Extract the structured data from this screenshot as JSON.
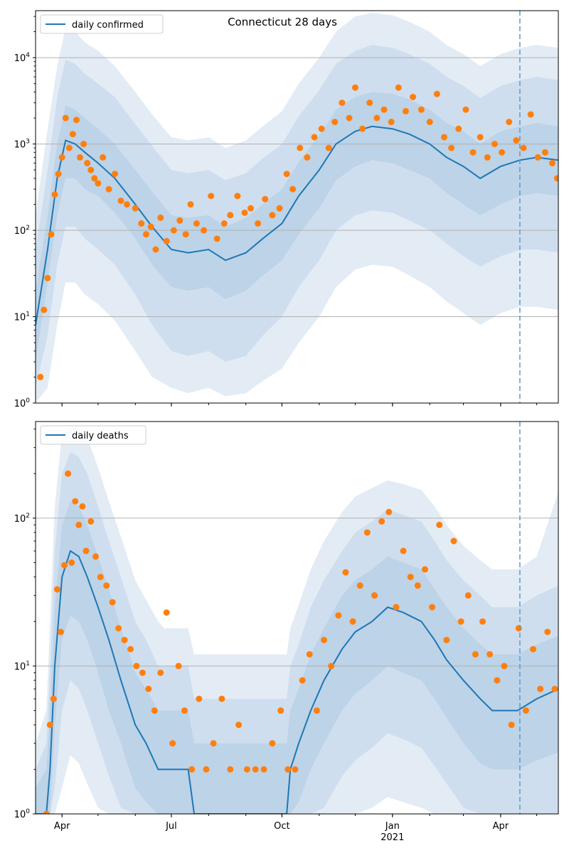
{
  "title": "Connecticut 28 days",
  "colors": {
    "line": "#1f77b4",
    "points": "#ff7f0e",
    "band_outer": "#e3ecf5",
    "band_mid": "#cfdeee",
    "band_inner": "#bcd3e8",
    "grid": "#b0b0b0"
  },
  "chart_data": [
    {
      "type": "line",
      "legend": "daily confirmed",
      "legend_position": "top-left",
      "yscale": "log",
      "ylim": [
        1,
        35000
      ],
      "y_ticks": [
        {
          "value": 1,
          "label": "10^0"
        },
        {
          "value": 10,
          "label": "10^1"
        },
        {
          "value": 100,
          "label": "10^2"
        },
        {
          "value": 1000,
          "label": "10^3"
        },
        {
          "value": 10000,
          "label": "10^4"
        }
      ],
      "x_ticks": [
        {
          "date": "2020-04-01",
          "label": "Apr"
        },
        {
          "date": "2020-07-01",
          "label": "Jul"
        },
        {
          "date": "2020-10-01",
          "label": "Oct"
        },
        {
          "date": "2021-01-01",
          "label": "Jan",
          "sublabel": "2021"
        },
        {
          "date": "2021-04-01",
          "label": "Apr"
        }
      ],
      "xlim": [
        "2020-03-10",
        "2021-05-19"
      ],
      "grid": "horizontal",
      "vline_date": "2021-04-17",
      "median": {
        "x": [
          "2020-03-10",
          "2020-03-20",
          "2020-03-28",
          "2020-04-04",
          "2020-04-12",
          "2020-04-20",
          "2020-05-01",
          "2020-05-15",
          "2020-06-01",
          "2020-06-15",
          "2020-07-01",
          "2020-07-15",
          "2020-08-01",
          "2020-08-15",
          "2020-09-01",
          "2020-09-15",
          "2020-10-01",
          "2020-10-15",
          "2020-11-01",
          "2020-11-15",
          "2020-12-01",
          "2020-12-15",
          "2021-01-01",
          "2021-01-15",
          "2021-02-01",
          "2021-02-15",
          "2021-03-01",
          "2021-03-15",
          "2021-04-01",
          "2021-04-17",
          "2021-05-01",
          "2021-05-19"
        ],
        "y": [
          8,
          60,
          400,
          1100,
          1000,
          800,
          600,
          400,
          200,
          110,
          60,
          55,
          60,
          45,
          55,
          80,
          120,
          250,
          500,
          1000,
          1400,
          1600,
          1500,
          1300,
          1000,
          700,
          550,
          400,
          550,
          650,
          700,
          650
        ]
      },
      "band_inner": {
        "lower": [
          3,
          25,
          150,
          400,
          400,
          300,
          250,
          160,
          80,
          40,
          22,
          20,
          22,
          16,
          20,
          30,
          45,
          90,
          180,
          380,
          550,
          650,
          600,
          500,
          400,
          270,
          200,
          150,
          200,
          250,
          270,
          250
        ],
        "upper": [
          20,
          150,
          1000,
          2800,
          2500,
          2000,
          1500,
          1000,
          500,
          280,
          150,
          140,
          150,
          110,
          140,
          200,
          300,
          620,
          1250,
          2500,
          3500,
          4000,
          3800,
          3300,
          2500,
          1750,
          1400,
          1000,
          1400,
          1600,
          1750,
          1600
        ]
      },
      "band_outer": {
        "lower": [
          1.5,
          6,
          40,
          110,
          110,
          80,
          60,
          40,
          18,
          8,
          4,
          3.5,
          4,
          3,
          3.5,
          6,
          10,
          22,
          45,
          100,
          150,
          170,
          160,
          130,
          100,
          70,
          50,
          38,
          50,
          60,
          60,
          55
        ],
        "upper": [
          60,
          500,
          3500,
          9500,
          8500,
          6500,
          5000,
          3500,
          1700,
          950,
          500,
          460,
          500,
          380,
          460,
          680,
          1000,
          2100,
          4200,
          8500,
          12000,
          14000,
          13000,
          11000,
          8500,
          6000,
          4700,
          3400,
          4700,
          5500,
          6000,
          5500
        ]
      },
      "band_extreme": {
        "lower": [
          1,
          1.5,
          8,
          25,
          25,
          18,
          14,
          9,
          4,
          2,
          1.5,
          1.3,
          1.5,
          1.2,
          1.3,
          1.8,
          2.5,
          5,
          10,
          22,
          35,
          40,
          38,
          30,
          22,
          15,
          11,
          8,
          11,
          13,
          13,
          12
        ],
        "upper": [
          150,
          1500,
          8000,
          22000,
          20000,
          15000,
          12000,
          8000,
          4000,
          2200,
          1200,
          1100,
          1200,
          900,
          1100,
          1600,
          2400,
          5000,
          10000,
          20000,
          30000,
          33000,
          31000,
          26000,
          20000,
          14000,
          11000,
          8000,
          11000,
          13000,
          14000,
          13000
        ]
      },
      "observed": {
        "x": [
          "2020-03-14",
          "2020-03-17",
          "2020-03-20",
          "2020-03-23",
          "2020-03-26",
          "2020-03-29",
          "2020-04-01",
          "2020-04-04",
          "2020-04-07",
          "2020-04-10",
          "2020-04-13",
          "2020-04-16",
          "2020-04-19",
          "2020-04-22",
          "2020-04-25",
          "2020-04-28",
          "2020-05-01",
          "2020-05-05",
          "2020-05-10",
          "2020-05-15",
          "2020-05-20",
          "2020-05-25",
          "2020-06-01",
          "2020-06-06",
          "2020-06-10",
          "2020-06-14",
          "2020-06-18",
          "2020-06-22",
          "2020-06-27",
          "2020-07-03",
          "2020-07-08",
          "2020-07-13",
          "2020-07-17",
          "2020-07-22",
          "2020-07-28",
          "2020-08-03",
          "2020-08-08",
          "2020-08-14",
          "2020-08-19",
          "2020-08-25",
          "2020-08-31",
          "2020-09-05",
          "2020-09-11",
          "2020-09-17",
          "2020-09-23",
          "2020-09-29",
          "2020-10-05",
          "2020-10-10",
          "2020-10-16",
          "2020-10-22",
          "2020-10-28",
          "2020-11-03",
          "2020-11-09",
          "2020-11-14",
          "2020-11-20",
          "2020-11-26",
          "2020-12-01",
          "2020-12-07",
          "2020-12-13",
          "2020-12-19",
          "2020-12-25",
          "2020-12-31",
          "2021-01-06",
          "2021-01-12",
          "2021-01-18",
          "2021-01-25",
          "2021-02-01",
          "2021-02-07",
          "2021-02-13",
          "2021-02-19",
          "2021-02-25",
          "2021-03-03",
          "2021-03-09",
          "2021-03-15",
          "2021-03-21",
          "2021-03-27",
          "2021-04-02",
          "2021-04-08",
          "2021-04-14",
          "2021-04-20",
          "2021-04-26",
          "2021-05-02",
          "2021-05-08",
          "2021-05-14",
          "2021-05-18"
        ],
        "y": [
          2,
          12,
          28,
          90,
          260,
          450,
          700,
          2000,
          900,
          1300,
          1900,
          700,
          1000,
          600,
          500,
          400,
          350,
          700,
          300,
          450,
          220,
          200,
          180,
          120,
          90,
          110,
          60,
          140,
          75,
          100,
          130,
          90,
          200,
          120,
          100,
          250,
          80,
          120,
          150,
          250,
          160,
          180,
          120,
          230,
          150,
          180,
          450,
          300,
          900,
          700,
          1200,
          1500,
          900,
          1800,
          3000,
          2000,
          4500,
          1500,
          3000,
          2000,
          2500,
          1800,
          4500,
          2400,
          3500,
          2500,
          1800,
          3800,
          1200,
          900,
          1500,
          2500,
          800,
          1200,
          700,
          1000,
          800,
          1800,
          1100,
          900,
          2200,
          700,
          800,
          600,
          400
        ]
      }
    },
    {
      "type": "line",
      "legend": "daily deaths",
      "legend_position": "top-left",
      "yscale": "log",
      "ylim": [
        1,
        450
      ],
      "y_ticks": [
        {
          "value": 1,
          "label": "10^0"
        },
        {
          "value": 10,
          "label": "10^1"
        },
        {
          "value": 100,
          "label": "10^2"
        }
      ],
      "x_ticks": [
        {
          "date": "2020-04-01",
          "label": "Apr"
        },
        {
          "date": "2020-07-01",
          "label": "Jul"
        },
        {
          "date": "2020-10-01",
          "label": "Oct"
        },
        {
          "date": "2021-01-01",
          "label": "Jan",
          "sublabel": "2021"
        },
        {
          "date": "2021-04-01",
          "label": "Apr"
        }
      ],
      "xlim": [
        "2020-03-10",
        "2021-05-19"
      ],
      "grid": "horizontal",
      "vline_date": "2021-04-17",
      "median": {
        "x": [
          "2020-03-10",
          "2020-03-19",
          "2020-03-22",
          "2020-03-26",
          "2020-04-01",
          "2020-04-08",
          "2020-04-15",
          "2020-04-22",
          "2020-05-01",
          "2020-05-10",
          "2020-05-20",
          "2020-06-01",
          "2020-06-10",
          "2020-06-20",
          "2020-06-25",
          "2020-07-05",
          "2020-07-15",
          "2020-07-20",
          "2020-08-15",
          "2020-09-15",
          "2020-10-05",
          "2020-10-08",
          "2020-10-15",
          "2020-10-25",
          "2020-11-05",
          "2020-11-20",
          "2020-12-01",
          "2020-12-15",
          "2020-12-28",
          "2021-01-10",
          "2021-01-25",
          "2021-02-05",
          "2021-02-15",
          "2021-03-01",
          "2021-03-15",
          "2021-03-25",
          "2021-04-05",
          "2021-04-15",
          "2021-05-01",
          "2021-05-19"
        ],
        "y": [
          1,
          1,
          2,
          10,
          40,
          60,
          55,
          40,
          25,
          15,
          8,
          4,
          3,
          2,
          2,
          2,
          2,
          1,
          1,
          1,
          1,
          2,
          3,
          5,
          8,
          13,
          17,
          20,
          25,
          23,
          20,
          15,
          11,
          8,
          6,
          5,
          5,
          5,
          6,
          7
        ]
      },
      "band_inner": {
        "lower": [
          1,
          1,
          1,
          4,
          15,
          22,
          20,
          15,
          9,
          5,
          3,
          1.5,
          1.2,
          1,
          1,
          1,
          1,
          1,
          1,
          1,
          1,
          1,
          1.2,
          2,
          3,
          5,
          6.5,
          8,
          10,
          9,
          8,
          6,
          4.5,
          3,
          2.2,
          2,
          2,
          2,
          2.3,
          2.6
        ],
        "upper": [
          1.5,
          2,
          5,
          25,
          90,
          130,
          120,
          90,
          55,
          33,
          18,
          9,
          7,
          5,
          5,
          5,
          5,
          3,
          3,
          3,
          3,
          5,
          7,
          12,
          18,
          30,
          38,
          45,
          55,
          50,
          45,
          33,
          25,
          18,
          14,
          12,
          12,
          12,
          14,
          16
        ]
      },
      "band_outer": {
        "lower": [
          1,
          1,
          1,
          1.5,
          5,
          8,
          7,
          5,
          3,
          1.8,
          1.1,
          1,
          1,
          1,
          1,
          1,
          1,
          1,
          1,
          1,
          1,
          1,
          1,
          1,
          1.1,
          1.8,
          2.3,
          2.8,
          3.5,
          3.2,
          2.8,
          2.1,
          1.6,
          1.1,
          1,
          1,
          1,
          1,
          1,
          1
        ],
        "upper": [
          2,
          3,
          10,
          60,
          200,
          280,
          260,
          200,
          120,
          70,
          40,
          20,
          15,
          10,
          10,
          10,
          10,
          6,
          6,
          6,
          6,
          10,
          14,
          25,
          38,
          60,
          80,
          95,
          115,
          105,
          95,
          70,
          52,
          38,
          30,
          25,
          25,
          25,
          30,
          35
        ]
      },
      "band_extreme": {
        "lower": [
          1,
          1,
          1,
          1,
          1.5,
          2.5,
          2.2,
          1.6,
          1.1,
          1,
          1,
          1,
          1,
          1,
          1,
          1,
          1,
          1,
          1,
          1,
          1,
          1,
          1,
          1,
          1,
          1,
          1,
          1.1,
          1.3,
          1.2,
          1.1,
          1,
          1,
          1,
          1,
          1,
          1,
          1,
          1,
          1
        ],
        "upper": [
          3,
          5,
          20,
          120,
          380,
          420,
          400,
          350,
          220,
          130,
          75,
          38,
          28,
          20,
          18,
          18,
          18,
          12,
          12,
          12,
          12,
          18,
          26,
          45,
          70,
          110,
          140,
          160,
          180,
          170,
          155,
          120,
          90,
          65,
          52,
          45,
          45,
          45,
          55,
          150
        ]
      },
      "observed": {
        "x": [
          "2020-03-19",
          "2020-03-22",
          "2020-03-25",
          "2020-03-28",
          "2020-03-31",
          "2020-04-03",
          "2020-04-06",
          "2020-04-09",
          "2020-04-12",
          "2020-04-15",
          "2020-04-18",
          "2020-04-21",
          "2020-04-25",
          "2020-04-29",
          "2020-05-03",
          "2020-05-08",
          "2020-05-13",
          "2020-05-18",
          "2020-05-23",
          "2020-05-28",
          "2020-06-02",
          "2020-06-07",
          "2020-06-12",
          "2020-06-17",
          "2020-06-22",
          "2020-06-27",
          "2020-07-02",
          "2020-07-07",
          "2020-07-12",
          "2020-07-18",
          "2020-07-24",
          "2020-07-30",
          "2020-08-05",
          "2020-08-12",
          "2020-08-19",
          "2020-08-26",
          "2020-09-02",
          "2020-09-09",
          "2020-09-16",
          "2020-09-23",
          "2020-09-30",
          "2020-10-06",
          "2020-10-12",
          "2020-10-18",
          "2020-10-24",
          "2020-10-30",
          "2020-11-05",
          "2020-11-11",
          "2020-11-17",
          "2020-11-23",
          "2020-11-29",
          "2020-12-05",
          "2020-12-11",
          "2020-12-17",
          "2020-12-23",
          "2020-12-29",
          "2021-01-04",
          "2021-01-10",
          "2021-01-16",
          "2021-01-22",
          "2021-01-28",
          "2021-02-03",
          "2021-02-09",
          "2021-02-15",
          "2021-02-21",
          "2021-02-27",
          "2021-03-05",
          "2021-03-11",
          "2021-03-17",
          "2021-03-23",
          "2021-03-29",
          "2021-04-04",
          "2021-04-10",
          "2021-04-16",
          "2021-04-22",
          "2021-04-28",
          "2021-05-04",
          "2021-05-10",
          "2021-05-16"
        ],
        "y": [
          1,
          4,
          6,
          33,
          17,
          48,
          200,
          50,
          130,
          90,
          120,
          60,
          95,
          55,
          40,
          35,
          27,
          18,
          15,
          13,
          10,
          9,
          7,
          5,
          9,
          23,
          3,
          10,
          5,
          2,
          6,
          2,
          3,
          6,
          2,
          4,
          2,
          2,
          2,
          3,
          5,
          2,
          2,
          8,
          12,
          5,
          15,
          10,
          22,
          43,
          20,
          35,
          80,
          30,
          95,
          110,
          25,
          60,
          40,
          35,
          45,
          25,
          90,
          15,
          70,
          20,
          30,
          12,
          20,
          12,
          8,
          10,
          4,
          18,
          5,
          13,
          7,
          17,
          7
        ]
      }
    }
  ]
}
